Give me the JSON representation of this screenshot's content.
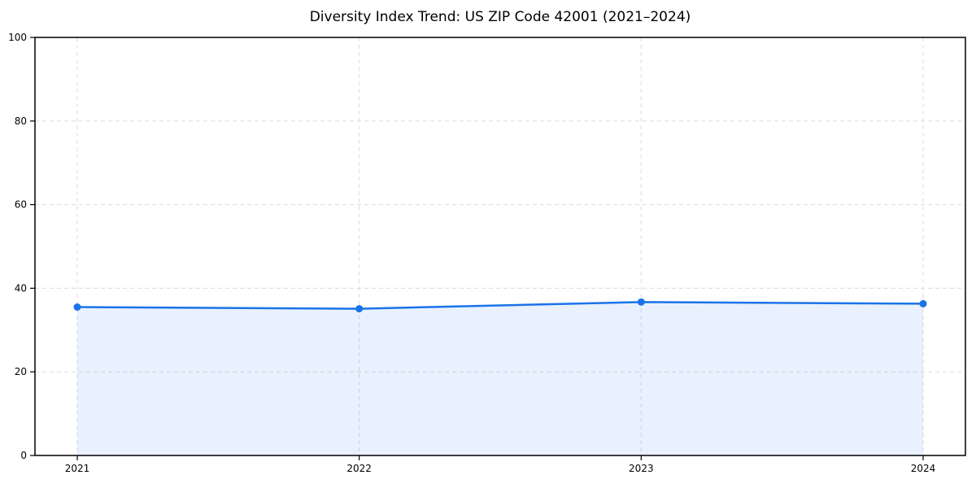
{
  "chart_data": {
    "type": "area",
    "title": "Diversity Index Trend: US ZIP Code 42001 (2021–2024)",
    "categories": [
      "2021",
      "2022",
      "2023",
      "2024"
    ],
    "x": [
      2021,
      2022,
      2023,
      2024
    ],
    "series": [
      {
        "name": "Diversity Index",
        "values": [
          35.5,
          35.1,
          36.7,
          36.3
        ]
      }
    ],
    "xlabel": "",
    "ylabel": "",
    "xlim": [
      2020.85,
      2024.15
    ],
    "ylim": [
      0,
      100
    ],
    "xticks": [
      2021,
      2022,
      2023,
      2024
    ],
    "yticks": [
      0,
      20,
      40,
      60,
      80,
      100
    ],
    "grid": true,
    "grid_style": "dashed",
    "legend_position": "none",
    "colors": {
      "line": "#1a73e8",
      "marker": "#1a73e8",
      "area_fill": "rgba(26,115,232,0.10)",
      "grid": "#dcdcdc",
      "axis": "#000000",
      "tick_text": "#000000",
      "title_text": "#000000",
      "background": "#ffffff"
    }
  }
}
